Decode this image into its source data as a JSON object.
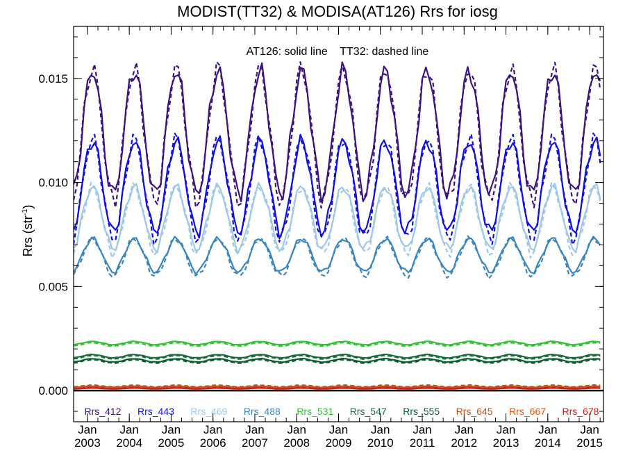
{
  "chart_data": {
    "type": "line",
    "title": "MODIST(TT32) & MODISA(AT126)  Rrs for iosg",
    "annotation": "AT126: solid line    TT32: dashed line",
    "ylabel_main": "Rrs (str",
    "ylabel_sup": "-1",
    "ylabel_close": ")",
    "ylim": [
      -0.0015,
      0.0175
    ],
    "xlim": [
      2002.67,
      2015.33
    ],
    "y_ticks": [
      {
        "value": 0.0,
        "label": "0.000"
      },
      {
        "value": 0.005,
        "label": "0.005"
      },
      {
        "value": 0.01,
        "label": "0.010"
      },
      {
        "value": 0.015,
        "label": "0.015"
      }
    ],
    "x_ticks": [
      {
        "value": 2003.0,
        "month": "Jan",
        "year": "2003"
      },
      {
        "value": 2004.0,
        "month": "Jan",
        "year": "2004"
      },
      {
        "value": 2005.0,
        "month": "Jan",
        "year": "2005"
      },
      {
        "value": 2006.0,
        "month": "Jan",
        "year": "2006"
      },
      {
        "value": 2007.0,
        "month": "Jan",
        "year": "2007"
      },
      {
        "value": 2008.0,
        "month": "Jan",
        "year": "2008"
      },
      {
        "value": 2009.0,
        "month": "Jan",
        "year": "2009"
      },
      {
        "value": 2010.0,
        "month": "Jan",
        "year": "2010"
      },
      {
        "value": 2011.0,
        "month": "Jan",
        "year": "2011"
      },
      {
        "value": 2012.0,
        "month": "Jan",
        "year": "2012"
      },
      {
        "value": 2013.0,
        "month": "Jan",
        "year": "2013"
      },
      {
        "value": 2014.0,
        "month": "Jan",
        "year": "2014"
      },
      {
        "value": 2015.0,
        "month": "Jan",
        "year": "2015"
      }
    ],
    "series": [
      {
        "name": "Rrs_412",
        "color": "#3d1380",
        "peak_month": 0.12,
        "solid": {
          "mean": 0.0124,
          "amp": 0.003
        },
        "dashed": {
          "mean": 0.0123,
          "amp": 0.0032
        }
      },
      {
        "name": "Rrs_443",
        "color": "#1010e6",
        "peak_month": 0.12,
        "solid": {
          "mean": 0.0098,
          "amp": 0.0022
        },
        "dashed": {
          "mean": 0.0097,
          "amp": 0.0024
        }
      },
      {
        "name": "Rrs_469",
        "color": "#9ec9e6",
        "peak_month": 0.12,
        "solid": {
          "mean": 0.0083,
          "amp": 0.0015
        },
        "dashed": {
          "mean": 0.0082,
          "amp": 0.0016
        }
      },
      {
        "name": "Rrs_488",
        "color": "#3a86bf",
        "peak_month": 0.12,
        "solid": {
          "mean": 0.0065,
          "amp": 0.0008
        },
        "dashed": {
          "mean": 0.0064,
          "amp": 0.0009
        }
      },
      {
        "name": "Rrs_531",
        "color": "#2fc62f",
        "peak_month": 0.12,
        "solid": {
          "mean": 0.00228,
          "amp": 8e-05
        },
        "dashed": {
          "mean": 0.00222,
          "amp": 8e-05
        }
      },
      {
        "name": "Rrs_547",
        "color": "#1c6b3e",
        "peak_month": 0.12,
        "solid": {
          "mean": 0.00165,
          "amp": 8e-05
        },
        "dashed": {
          "mean": 0.0016,
          "amp": 8e-05
        }
      },
      {
        "name": "Rrs_555",
        "color": "#0f5e30",
        "peak_month": 0.12,
        "solid": {
          "mean": 0.00145,
          "amp": 8e-05
        },
        "dashed": {
          "mean": 0.0014,
          "amp": 8e-05
        }
      },
      {
        "name": "Rrs_645",
        "color": "#b8551c",
        "peak_month": 0.12,
        "solid": {
          "mean": 0.00018,
          "amp": 3e-05
        },
        "dashed": {
          "mean": 0.00022,
          "amp": 4e-05
        }
      },
      {
        "name": "Rrs_667",
        "color": "#e0550a",
        "peak_month": 0.12,
        "solid": {
          "mean": 0.00012,
          "amp": 2e-05
        },
        "dashed": {
          "mean": 0.00015,
          "amp": 3e-05
        }
      },
      {
        "name": "Rrs_678",
        "color": "#cf1d1d",
        "peak_month": 0.12,
        "solid": {
          "mean": 0.0001,
          "amp": 2e-05
        },
        "dashed": {
          "mean": 0.00012,
          "amp": 3e-05
        }
      }
    ],
    "zero_line": 0.0,
    "grid": false,
    "legend_placement": "bottom inside plot"
  }
}
